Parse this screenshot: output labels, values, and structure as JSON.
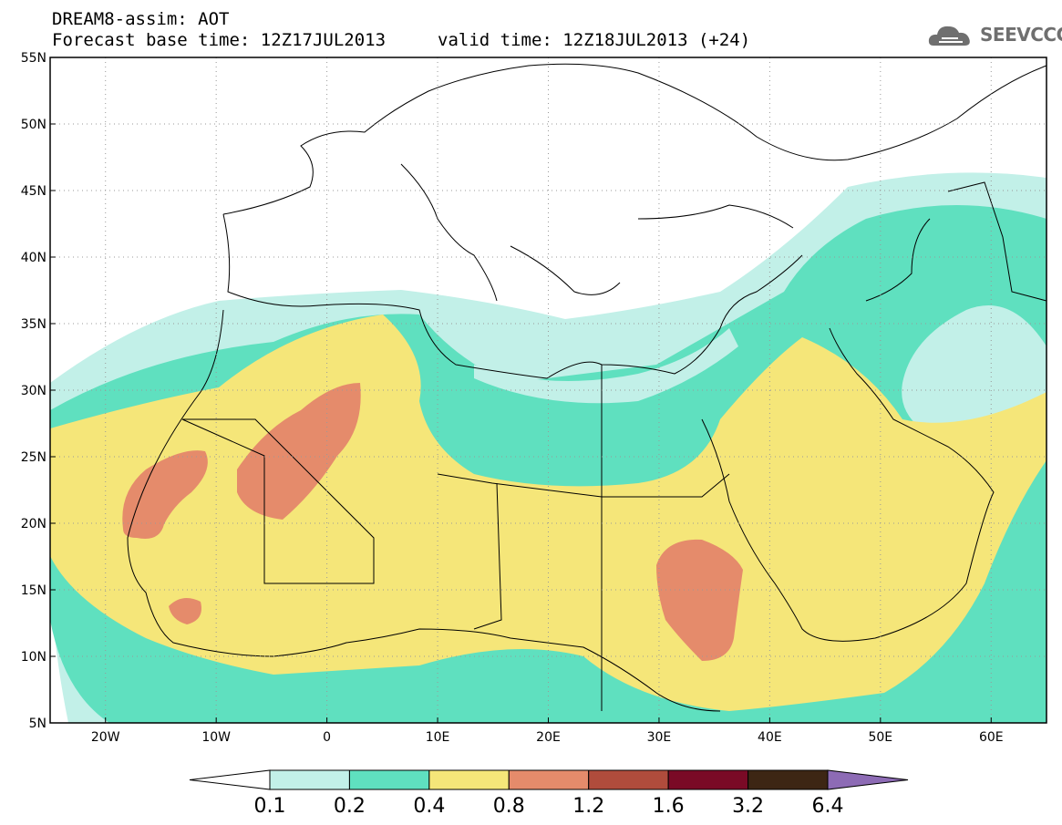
{
  "header": {
    "title": "DREAM8-assim: AOT",
    "base_time": "Forecast base time: 12Z17JUL2013",
    "valid_time": "valid time: 12Z18JUL2013 (+24)"
  },
  "logo": {
    "text": "SEEVCCC",
    "icon": "cloud-icon"
  },
  "map": {
    "lat_labels": [
      "55N",
      "50N",
      "45N",
      "40N",
      "35N",
      "30N",
      "25N",
      "20N",
      "15N",
      "10N",
      "5N"
    ],
    "lon_labels": [
      "20W",
      "10W",
      "0",
      "10E",
      "20E",
      "30E",
      "40E",
      "50E",
      "60E"
    ],
    "lat_range": [
      5,
      55
    ],
    "lon_range": [
      -25,
      65
    ]
  },
  "colorbar": {
    "ticks": [
      "0.1",
      "0.2",
      "0.4",
      "0.8",
      "1.2",
      "1.6",
      "3.2",
      "6.4"
    ],
    "colors": [
      "#c2f0e8",
      "#5fe0bf",
      "#f5e679",
      "#e58b6b",
      "#b04c3c",
      "#7a0a26",
      "#3d2614",
      "#8d6bb5"
    ],
    "under_color": "#ffffff",
    "over_color": "#8d6bb5"
  }
}
